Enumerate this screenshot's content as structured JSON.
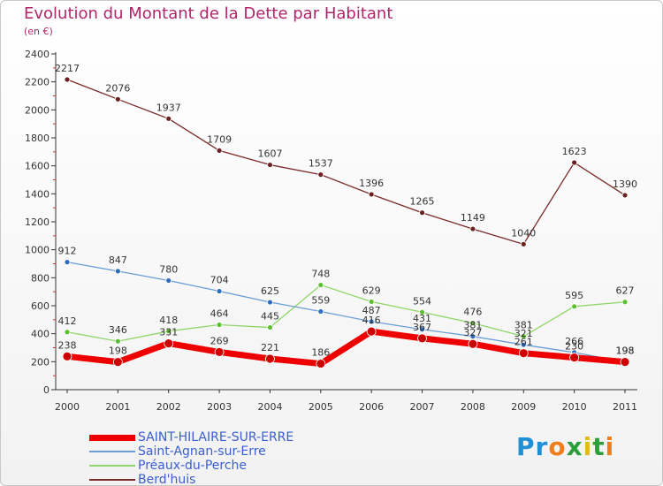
{
  "title": "Evolution du Montant de la Dette par Habitant",
  "subtitle": "(en €)",
  "brand": "Proxiti",
  "colors": {
    "title": "#b0246a",
    "axis": "#333333",
    "grid": "#d9d9d9"
  },
  "chart_data": {
    "type": "line",
    "title": "Evolution du Montant de la Dette par Habitant",
    "subtitle": "(en €)",
    "x": [
      "2000",
      "2001",
      "2002",
      "2003",
      "2004",
      "2005",
      "2006",
      "2007",
      "2008",
      "2009",
      "2010",
      "2011"
    ],
    "ylim": [
      0,
      2400
    ],
    "yticks": [
      0,
      200,
      400,
      600,
      800,
      1000,
      1200,
      1400,
      1600,
      1800,
      2000,
      2200,
      2400
    ],
    "grid": false,
    "legend_position": "bottom-left",
    "series": [
      {
        "name": "SAINT-HILAIRE-SUR-ERRE",
        "values": [
          238,
          198,
          331,
          269,
          221,
          186,
          416,
          367,
          327,
          261,
          230,
          198
        ],
        "color": "#ee0000",
        "marker": "#cc0000",
        "width": 7,
        "labels": true
      },
      {
        "name": "Saint-Agnan-sur-Erre",
        "values": [
          912,
          847,
          780,
          704,
          625,
          559,
          487,
          431,
          381,
          321,
          266,
          198
        ],
        "color": "#6a9ed8",
        "marker": "#2f6cc0",
        "width": 1.3,
        "labels": true
      },
      {
        "name": "Préaux-du-Perche",
        "values": [
          412,
          346,
          418,
          464,
          445,
          748,
          629,
          554,
          476,
          381,
          595,
          627
        ],
        "color": "#8fd66a",
        "marker": "#5cbf2e",
        "width": 1.3,
        "labels": true
      },
      {
        "name": "Berd'huis",
        "values": [
          2217,
          2076,
          1937,
          1709,
          1607,
          1537,
          1396,
          1265,
          1149,
          1040,
          1623,
          1390
        ],
        "color": "#7a2a2a",
        "marker": "#6a2020",
        "width": 1.3,
        "labels": true
      }
    ]
  }
}
